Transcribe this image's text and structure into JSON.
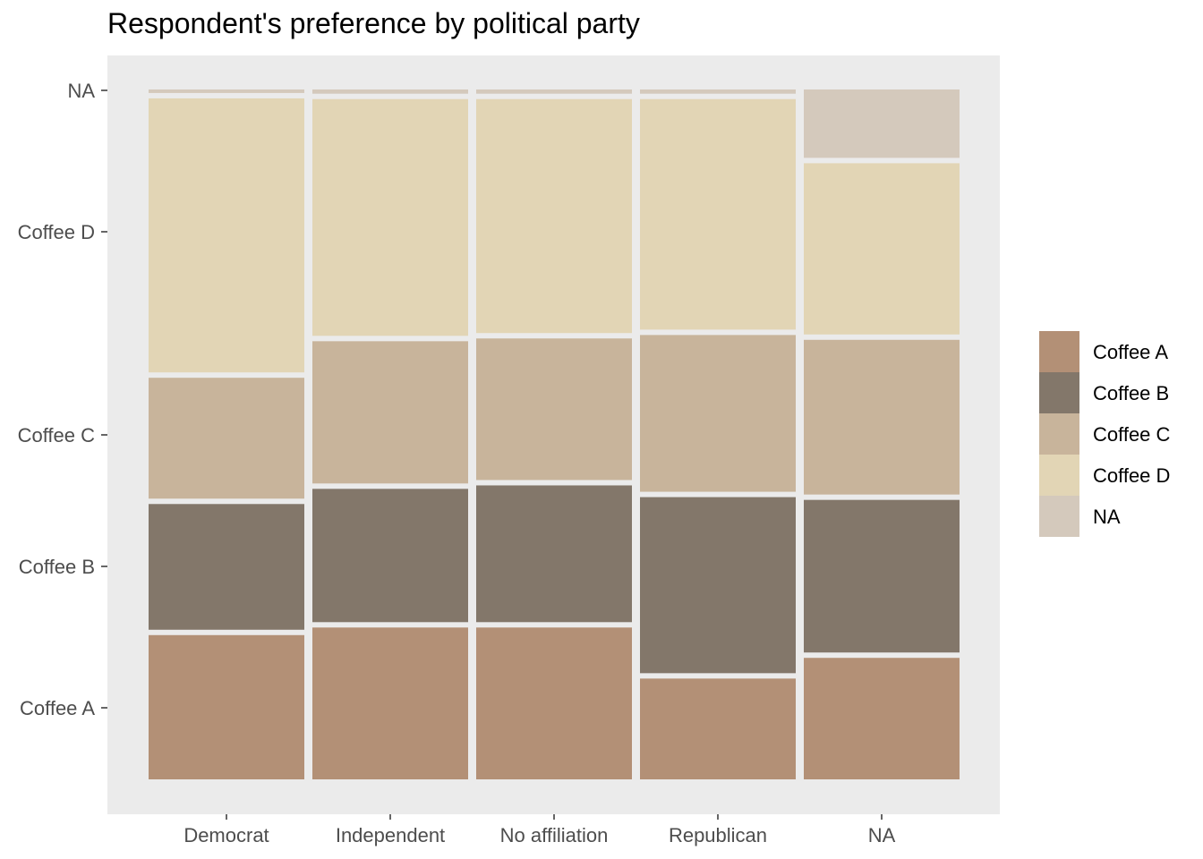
{
  "chart_data": {
    "type": "mosaic",
    "title": "Respondent's preference by political party",
    "xlabel": "",
    "ylabel": "",
    "categories": [
      "Democrat",
      "Independent",
      "No affiliation",
      "Republican",
      "NA"
    ],
    "y_ticks": [
      "NA",
      "Coffee D",
      "Coffee C",
      "Coffee B",
      "Coffee A"
    ],
    "series": [
      {
        "name": "Coffee A",
        "color": "#B39076",
        "values": [
          0.213,
          0.224,
          0.224,
          0.15,
          0.18
        ]
      },
      {
        "name": "Coffee B",
        "color": "#83776A",
        "values": [
          0.19,
          0.201,
          0.206,
          0.263,
          0.229
        ]
      },
      {
        "name": "Coffee C",
        "color": "#C8B49B",
        "values": [
          0.183,
          0.214,
          0.213,
          0.235,
          0.232
        ]
      },
      {
        "name": "Coffee D",
        "color": "#E2D5B5",
        "values": [
          0.405,
          0.351,
          0.347,
          0.342,
          0.256
        ]
      },
      {
        "name": "NA",
        "color": "#D4C9BC",
        "values": [
          0.009,
          0.01,
          0.01,
          0.01,
          0.103
        ]
      }
    ],
    "legend": {
      "position": "right",
      "items": [
        {
          "label": "Coffee A",
          "color": "#B39076"
        },
        {
          "label": "Coffee B",
          "color": "#83776A"
        },
        {
          "label": "Coffee C",
          "color": "#C8B49B"
        },
        {
          "label": "Coffee D",
          "color": "#E2D5B5"
        },
        {
          "label": "NA",
          "color": "#D4C9BC"
        }
      ]
    },
    "panel_background": "#EBEBEB",
    "grid": false
  }
}
